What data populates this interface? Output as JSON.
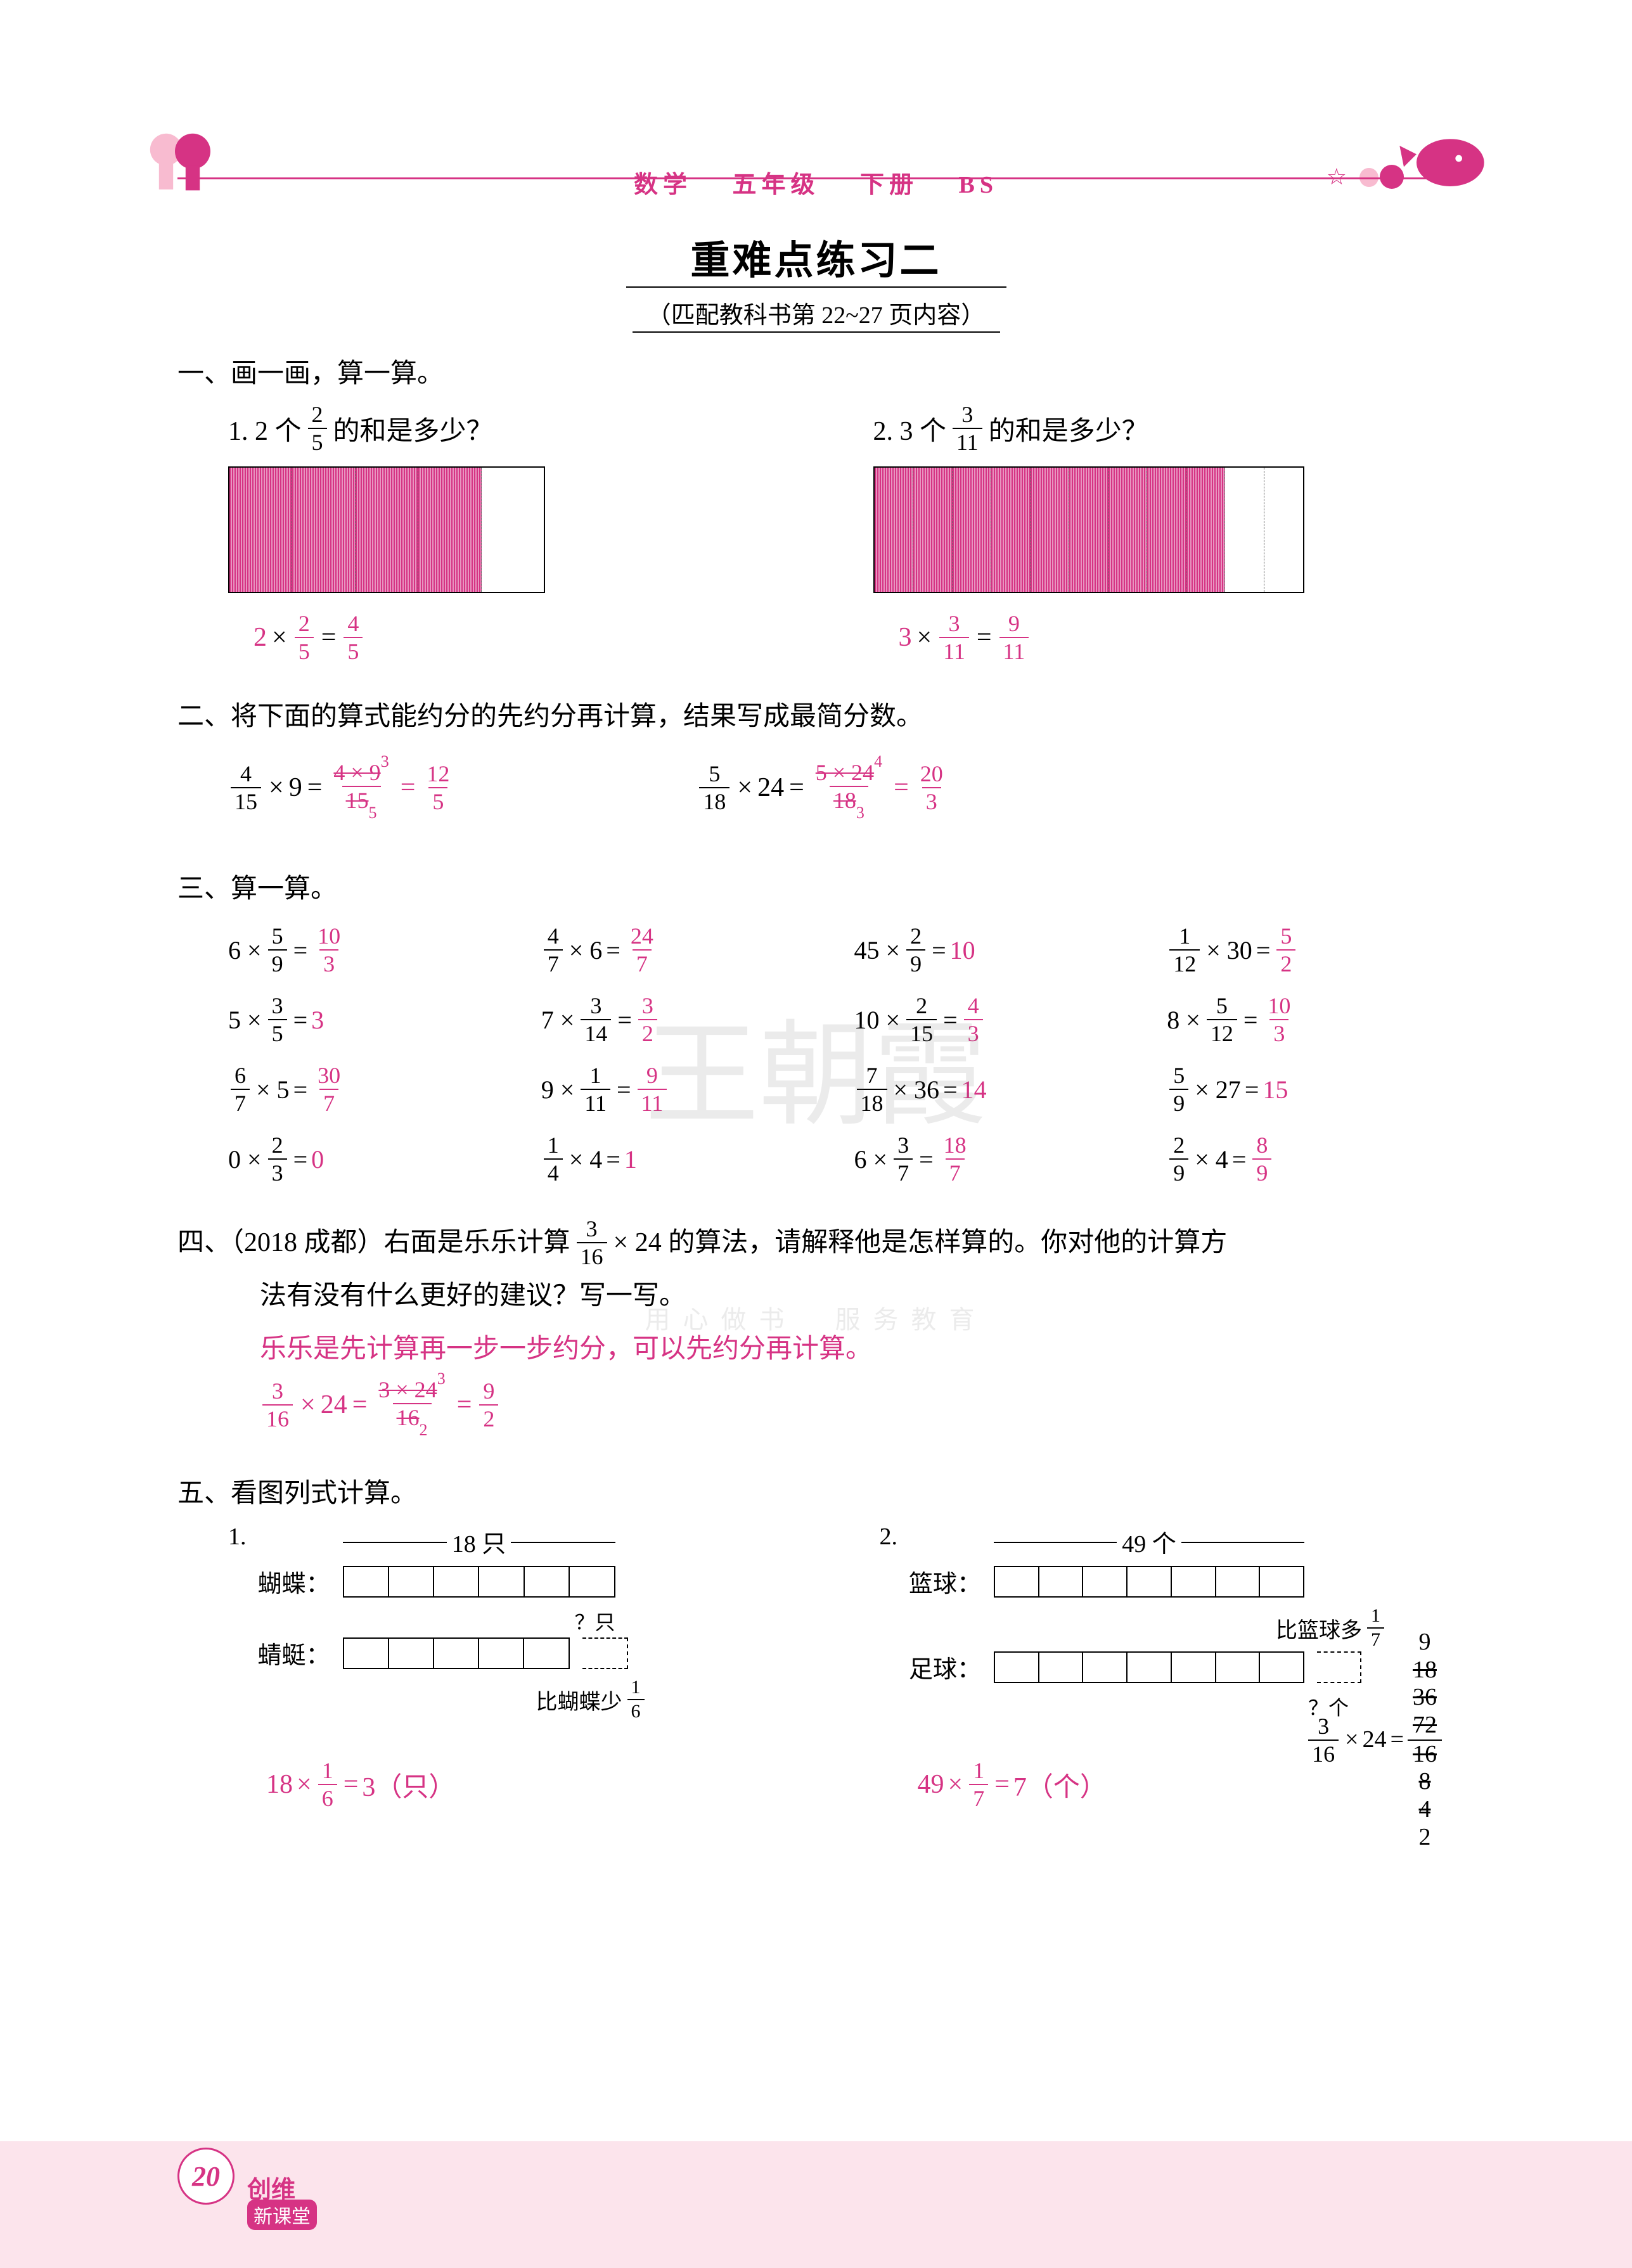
{
  "header": {
    "subject": "数学",
    "grade": "五年级",
    "volume": "下册",
    "edition": "BS"
  },
  "title": {
    "main": "重难点练习二",
    "sub": "（匹配教科书第 22~27 页内容）"
  },
  "section1": {
    "title": "一、画一画，算一算。",
    "q1": {
      "prompt_pre": "1. 2 个",
      "frac_num": "2",
      "frac_den": "5",
      "prompt_post": "的和是多少？",
      "bar_total": 5,
      "bar_filled": 4,
      "answer_a": "2",
      "answer_frac_num": "2",
      "answer_frac_den": "5",
      "answer_result_num": "4",
      "answer_result_den": "5"
    },
    "q2": {
      "prompt_pre": "2. 3 个",
      "frac_num": "3",
      "frac_den": "11",
      "prompt_post": "的和是多少？",
      "bar_total": 11,
      "bar_filled": 9,
      "answer_a": "3",
      "answer_frac_num": "3",
      "answer_frac_den": "11",
      "answer_result_num": "9",
      "answer_result_den": "11"
    }
  },
  "section2": {
    "title": "二、将下面的算式能约分的先约分再计算，结果写成最简分数。",
    "eq1": {
      "lhs_num": "4",
      "lhs_den": "15",
      "mult": "9",
      "work_num": "4 × 9",
      "work_den": "15",
      "cancel_top": "3",
      "cancel_bot": "5",
      "result_num": "12",
      "result_den": "5"
    },
    "eq2": {
      "lhs_num": "5",
      "lhs_den": "18",
      "mult": "24",
      "work_num": "5 × 24",
      "work_den": "18",
      "cancel_top": "4",
      "cancel_bot": "3",
      "result_num": "20",
      "result_den": "3"
    }
  },
  "section3": {
    "title": "三、算一算。",
    "rows": [
      [
        {
          "pre": "6 ×",
          "fn": "5",
          "fd": "9",
          "rn": "10",
          "rd": "3"
        },
        {
          "fn": "4",
          "fd": "7",
          "post": "× 6",
          "rn": "24",
          "rd": "7"
        },
        {
          "pre": "45 ×",
          "fn": "2",
          "fd": "9",
          "r": "10"
        },
        {
          "fn": "1",
          "fd": "12",
          "post": "× 30",
          "rn": "5",
          "rd": "2"
        }
      ],
      [
        {
          "pre": "5 ×",
          "fn": "3",
          "fd": "5",
          "r": "3"
        },
        {
          "pre": "7 ×",
          "fn": "3",
          "fd": "14",
          "rn": "3",
          "rd": "2"
        },
        {
          "pre": "10 ×",
          "fn": "2",
          "fd": "15",
          "rn": "4",
          "rd": "3"
        },
        {
          "pre": "8 ×",
          "fn": "5",
          "fd": "12",
          "rn": "10",
          "rd": "3"
        }
      ],
      [
        {
          "fn": "6",
          "fd": "7",
          "post": "× 5",
          "rn": "30",
          "rd": "7"
        },
        {
          "pre": "9 ×",
          "fn": "1",
          "fd": "11",
          "rn": "9",
          "rd": "11"
        },
        {
          "fn": "7",
          "fd": "18",
          "post": "× 36",
          "r": "14"
        },
        {
          "fn": "5",
          "fd": "9",
          "post": "× 27",
          "r": "15"
        }
      ],
      [
        {
          "pre": "0 ×",
          "fn": "2",
          "fd": "3",
          "r": "0"
        },
        {
          "fn": "1",
          "fd": "4",
          "post": "× 4",
          "r": "1"
        },
        {
          "pre": "6 ×",
          "fn": "3",
          "fd": "7",
          "rn": "18",
          "rd": "7"
        },
        {
          "fn": "2",
          "fd": "9",
          "post": "× 4",
          "rn": "8",
          "rd": "9"
        }
      ]
    ]
  },
  "section4": {
    "line1_pre": "四、（2018 成都）右面是乐乐计算",
    "frac_num": "3",
    "frac_den": "16",
    "line1_post": "× 24 的算法，请解释他是怎样算的。你对他的计算方",
    "line2": "法有没有什么更好的建议？写一写。",
    "answer1": "乐乐是先计算再一步一步约分，可以先约分再计算。",
    "ans_eq_lhs_num": "3",
    "ans_eq_lhs_den": "16",
    "ans_eq_mult": "24",
    "ans_work_num": "3 × 24",
    "ans_work_den": "16",
    "ans_cancel_top": "3",
    "ans_cancel_bot": "2",
    "ans_result_num": "9",
    "ans_result_den": "2",
    "work_lines": [
      "9",
      "18",
      "36",
      "72",
      "16",
      "8",
      "4",
      "2"
    ],
    "work_strike": [
      false,
      true,
      true,
      true,
      true,
      true,
      true,
      false
    ],
    "work_lhs_num": "3",
    "work_lhs_den": "16",
    "work_mult": "24"
  },
  "section5": {
    "title": "五、看图列式计算。",
    "q1": {
      "num": "1.",
      "total_label": "18 只",
      "row1_label": "蝴蝶：",
      "row1_segs": 6,
      "row2_label": "蜻蜓：",
      "row2_segs": 5,
      "row2_extra": 1,
      "missing": "？只",
      "note_pre": "比蝴蝶少",
      "note_num": "1",
      "note_den": "6",
      "ans_a": "18",
      "ans_fn": "1",
      "ans_fd": "6",
      "ans_r": "3（只）"
    },
    "q2": {
      "num": "2.",
      "total_label": "49 个",
      "row1_label": "篮球：",
      "row1_segs": 7,
      "row2_label": "足球：",
      "row2_segs": 7,
      "row2_extra": 1,
      "missing": "？个",
      "note_pre": "比篮球多",
      "note_num": "1",
      "note_den": "7",
      "ans_a": "49",
      "ans_fn": "1",
      "ans_fd": "7",
      "ans_r": "7（个）"
    }
  },
  "footer": {
    "page": "20",
    "brand1": "创维",
    "brand2": "新课堂"
  },
  "watermark": "王朝霞",
  "watermark_sub": "用心做书　服务教育",
  "colors": {
    "pink": "#d63384",
    "light_pink": "#fce4ec",
    "bar_fill": "#e895c0"
  }
}
